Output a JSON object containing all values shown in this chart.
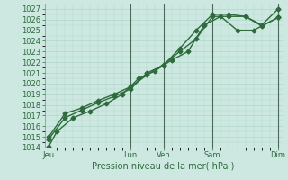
{
  "background_color": "#cde8e0",
  "grid_color": "#b0d8cc",
  "line_color": "#2d6b3c",
  "xlabel": "Pression niveau de la mer( hPa )",
  "ylim": [
    1014,
    1027.5
  ],
  "yticks": [
    1014,
    1015,
    1016,
    1017,
    1018,
    1019,
    1020,
    1021,
    1022,
    1023,
    1024,
    1025,
    1026,
    1027
  ],
  "day_labels": [
    "Jeu",
    "Lun",
    "Ven",
    "Sam",
    "Dim"
  ],
  "day_positions": [
    0,
    10,
    14,
    20,
    28
  ],
  "vline_positions": [
    10,
    14,
    20,
    28
  ],
  "line1_x": [
    0,
    1,
    3,
    5,
    7,
    9,
    11,
    13,
    15,
    17,
    19,
    21,
    23,
    25,
    28
  ],
  "line1_y": [
    1014.1,
    1015.5,
    1016.8,
    1017.4,
    1018.1,
    1019.0,
    1020.5,
    1021.2,
    1022.2,
    1023.0,
    1025.5,
    1026.3,
    1025.0,
    1025.0,
    1026.2
  ],
  "line2_x": [
    0,
    2,
    4,
    6,
    8,
    10,
    12,
    14,
    16,
    18,
    20,
    22,
    24,
    26,
    28
  ],
  "line2_y": [
    1015.0,
    1017.2,
    1017.7,
    1018.4,
    1019.0,
    1019.7,
    1020.8,
    1021.8,
    1023.0,
    1024.2,
    1026.3,
    1026.3,
    1026.3,
    1025.4,
    1026.2
  ],
  "line3_x": [
    0,
    2,
    4,
    6,
    8,
    10,
    12,
    14,
    16,
    18,
    20,
    22,
    24,
    26,
    28
  ],
  "line3_y": [
    1014.8,
    1016.8,
    1017.5,
    1018.2,
    1018.8,
    1019.5,
    1021.0,
    1021.7,
    1023.3,
    1025.0,
    1026.5,
    1026.5,
    1026.3,
    1025.5,
    1027.0
  ],
  "xlim": [
    -0.5,
    28.5
  ],
  "marker": "D",
  "markersize": 2.5,
  "linewidth": 1.0
}
